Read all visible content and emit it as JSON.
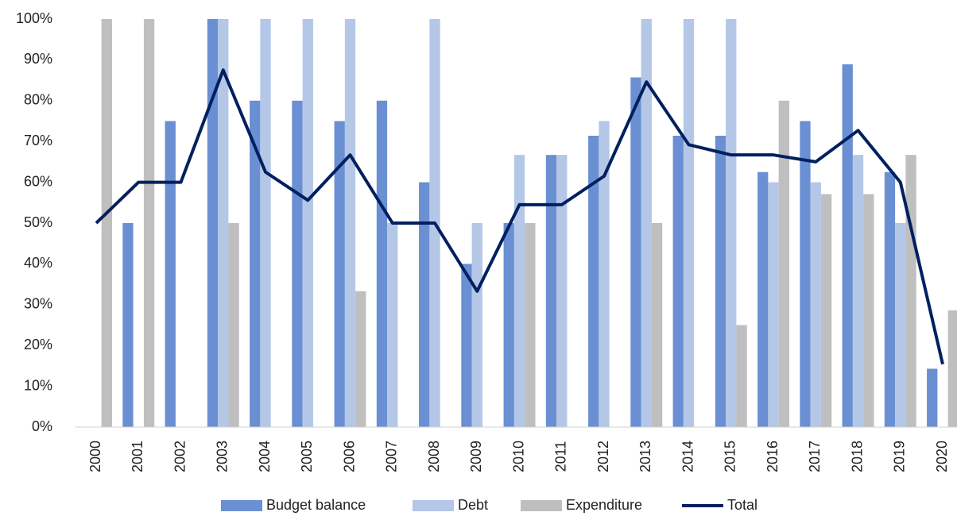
{
  "chart_data": {
    "type": "bar_line",
    "categories": [
      "2000",
      "2001",
      "2002",
      "2003",
      "2004",
      "2005",
      "2006",
      "2007",
      "2008",
      "2009",
      "2010",
      "2011",
      "2012",
      "2013",
      "2014",
      "2015",
      "2016",
      "2017",
      "2018",
      "2019",
      "2020"
    ],
    "series": [
      {
        "name": "Budget balance",
        "type": "bar",
        "color": "#6a8fd3",
        "values": [
          0,
          50,
          75,
          100,
          80,
          80,
          75,
          80,
          60,
          40,
          50,
          66.7,
          71.4,
          85.7,
          71.4,
          71.4,
          62.5,
          75,
          88.9,
          62.5,
          14.3
        ]
      },
      {
        "name": "Debt",
        "type": "bar",
        "color": "#b4c7e7",
        "values": [
          0,
          0,
          0,
          100,
          100,
          100,
          100,
          50,
          100,
          50,
          66.7,
          66.7,
          75,
          100,
          100,
          100,
          60,
          60,
          66.7,
          50,
          0
        ]
      },
      {
        "name": "Expenditure",
        "type": "bar",
        "color": "#bfbfbf",
        "values": [
          100,
          100,
          0,
          50,
          0,
          0,
          33.3,
          0,
          0,
          0,
          50,
          0,
          0,
          50,
          0,
          25,
          80,
          57.1,
          57.1,
          66.7,
          28.6
        ]
      },
      {
        "name": "Total",
        "type": "line",
        "color": "#002060",
        "values": [
          50,
          60,
          60,
          87.5,
          62.5,
          55.6,
          66.7,
          50,
          50,
          33.3,
          54.5,
          54.5,
          61.5,
          84.6,
          69.2,
          66.7,
          66.7,
          65,
          72.7,
          60,
          15.4
        ]
      }
    ],
    "ylim": [
      0,
      100
    ],
    "yticks": [
      {
        "value": 0,
        "label": "0%"
      },
      {
        "value": 10,
        "label": "10%"
      },
      {
        "value": 20,
        "label": "20%"
      },
      {
        "value": 30,
        "label": "30%"
      },
      {
        "value": 40,
        "label": "40%"
      },
      {
        "value": 50,
        "label": "50%"
      },
      {
        "value": 60,
        "label": "60%"
      },
      {
        "value": 70,
        "label": "70%"
      },
      {
        "value": 80,
        "label": "80%"
      },
      {
        "value": 90,
        "label": "90%"
      },
      {
        "value": 100,
        "label": "100%"
      }
    ],
    "legend": "bottom"
  }
}
